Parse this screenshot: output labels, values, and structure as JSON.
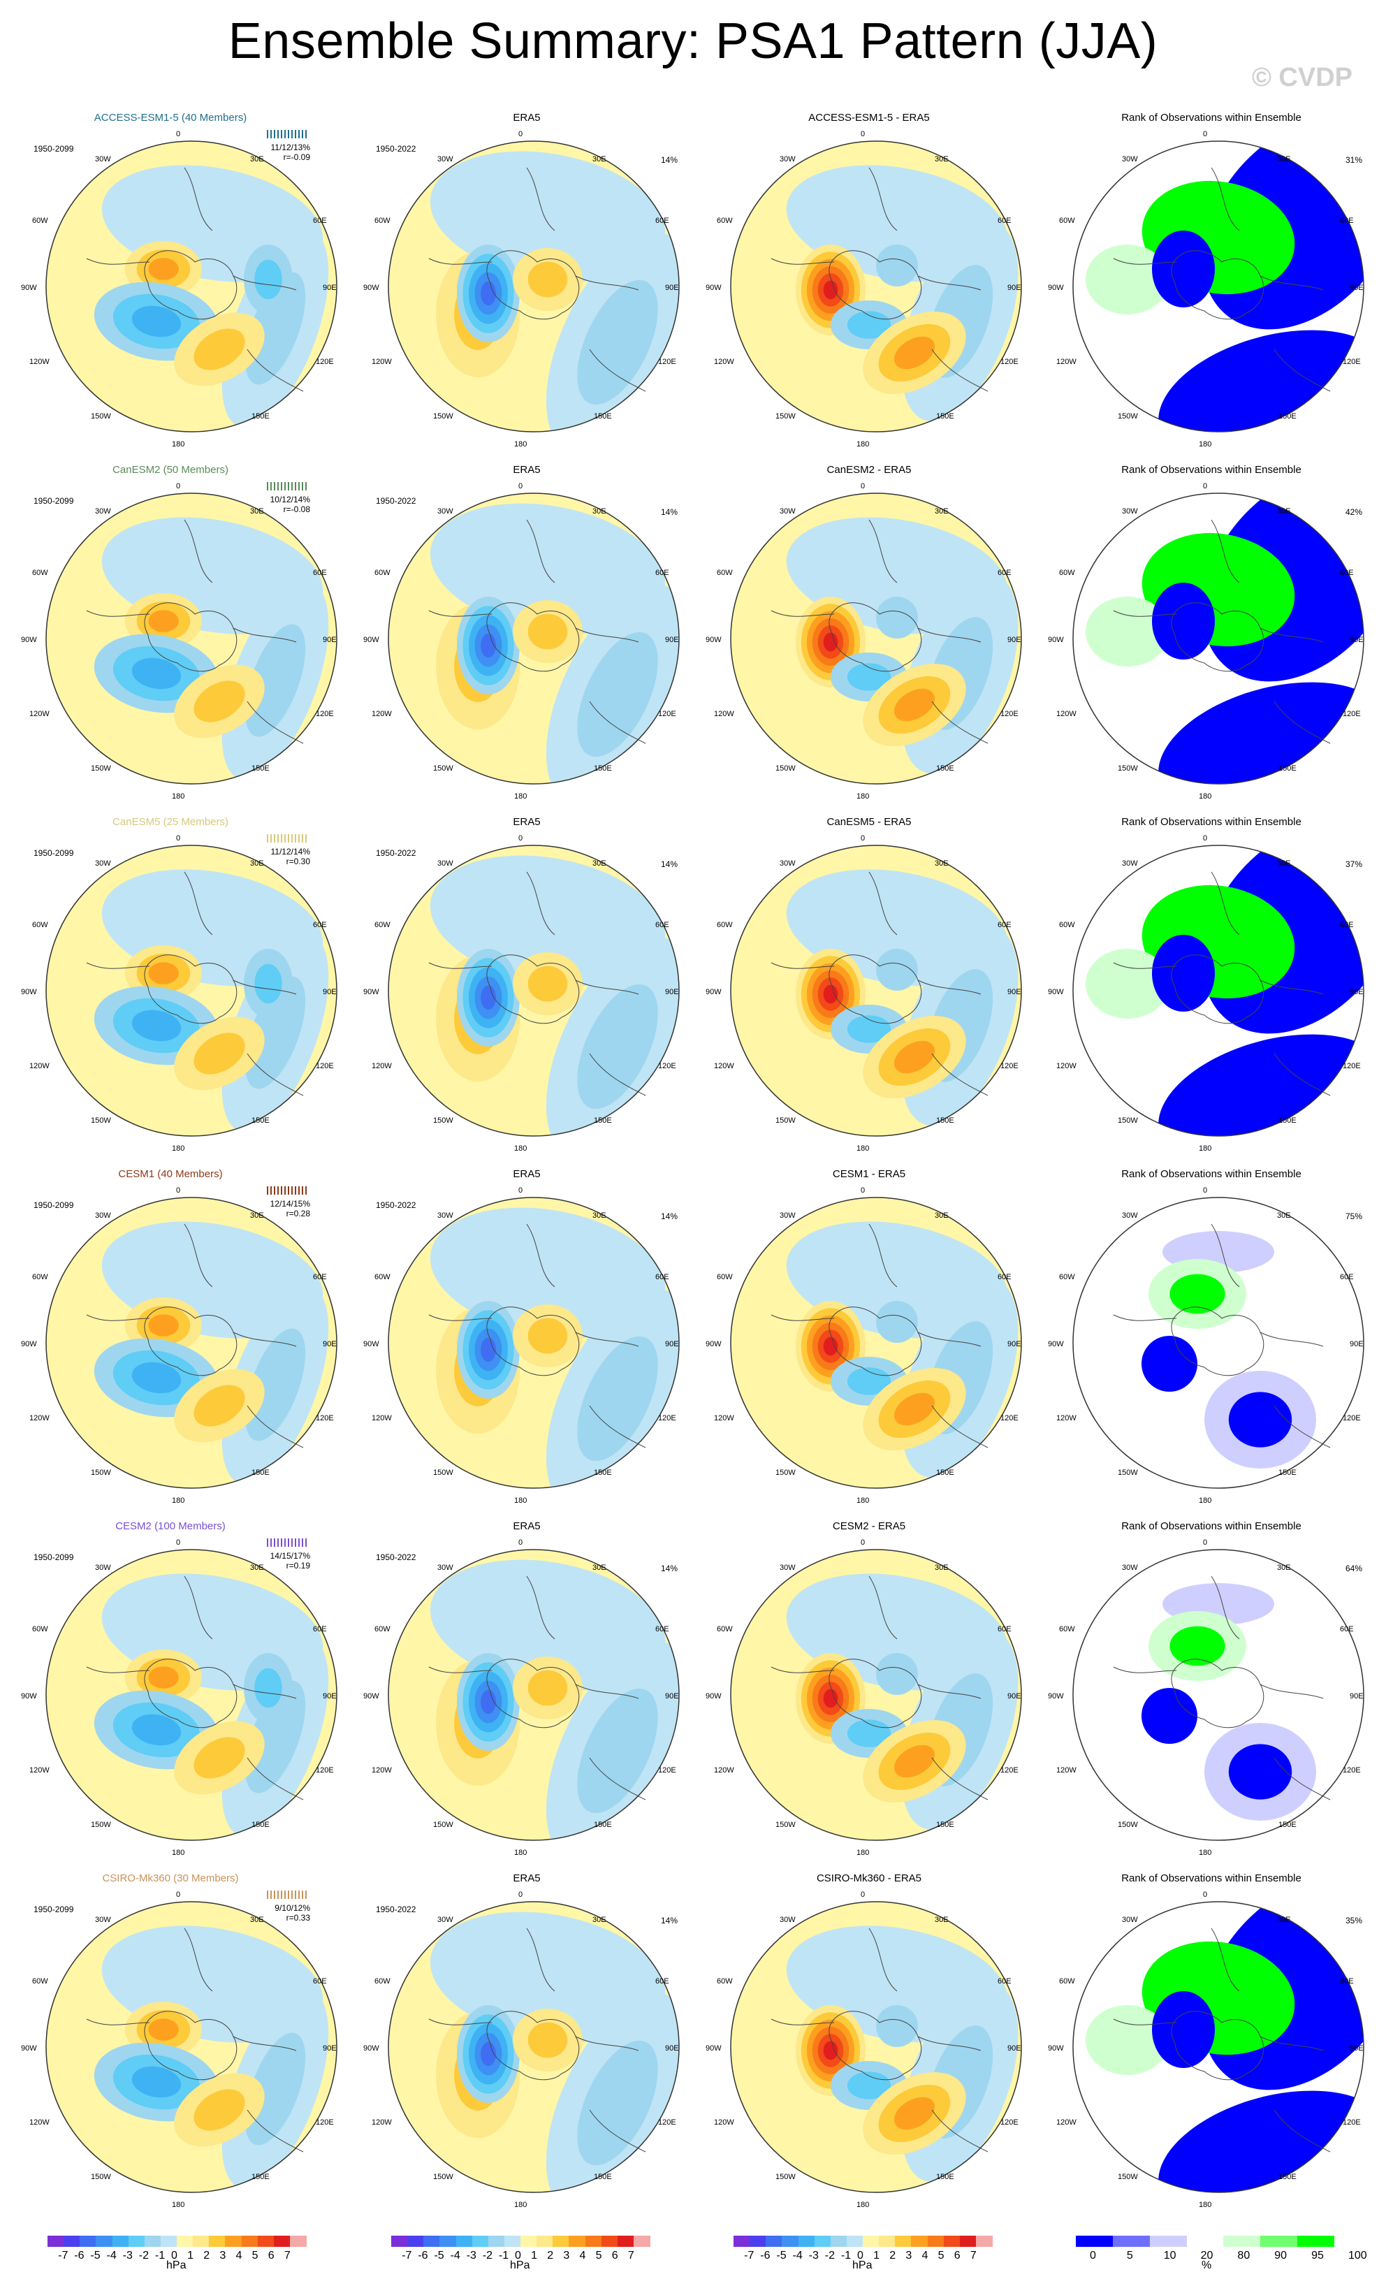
{
  "title": "Ensemble Summary: PSA1 Pattern (JJA)",
  "copyright": "© CVDP",
  "lon_labels": {
    "top": "0",
    "bottom": "180",
    "left": [
      "30W",
      "60W",
      "90W",
      "120W",
      "150W"
    ],
    "right": [
      "30E",
      "60E",
      "90E",
      "120E",
      "150E"
    ]
  },
  "common": {
    "obs_title": "ERA5",
    "obs_period": "1950-2022",
    "obs_pct": "14%",
    "model_period": "1950-2099",
    "rank_title": "Rank of Observations within Ensemble"
  },
  "rows": [
    {
      "model_title": "ACCESS-ESM1-5 (40 Members)",
      "model_color": "#1f6f8b",
      "stat1": "11/12/13%",
      "stat2": "r=-0.09",
      "diff_title": "ACCESS-ESM1-5 - ERA5",
      "rank_pct": "31%"
    },
    {
      "model_title": "CanESM2 (50 Members)",
      "model_color": "#5a8a5a",
      "stat1": "10/12/14%",
      "stat2": "r=-0.08",
      "diff_title": "CanESM2 - ERA5",
      "rank_pct": "42%"
    },
    {
      "model_title": "CanESM5 (25 Members)",
      "model_color": "#d8c87a",
      "stat1": "11/12/14%",
      "stat2": "r=0.30",
      "diff_title": "CanESM5 - ERA5",
      "rank_pct": "37%"
    },
    {
      "model_title": "CESM1 (40 Members)",
      "model_color": "#8b3a1a",
      "stat1": "12/14/15%",
      "stat2": "r=0.28",
      "diff_title": "CESM1 - ERA5",
      "rank_pct": "75%"
    },
    {
      "model_title": "CESM2 (100 Members)",
      "model_color": "#7a4fd0",
      "stat1": "14/15/17%",
      "stat2": "r=0.19",
      "diff_title": "CESM2 - ERA5",
      "rank_pct": "64%"
    },
    {
      "model_title": "CSIRO-Mk360 (30 Members)",
      "model_color": "#c9925a",
      "stat1": "9/10/12%",
      "stat2": "r=0.33",
      "diff_title": "CSIRO-Mk360 - ERA5",
      "rank_pct": "35%"
    }
  ],
  "colorbars": {
    "hpa_ticks": [
      "-7",
      "-6",
      "-5",
      "-4",
      "-3",
      "-2",
      "-1",
      "0",
      "1",
      "2",
      "3",
      "4",
      "5",
      "6",
      "7"
    ],
    "hpa_unit": "hPa",
    "hpa_colors": [
      "#7b2fd8",
      "#4b3ff0",
      "#3f6ef2",
      "#3e90f2",
      "#3fb2f4",
      "#5fcdf5",
      "#9ed6ef",
      "#bfe4f5",
      "#fff6a8",
      "#fde88a",
      "#fdca3a",
      "#fda020",
      "#f87a18",
      "#f24a18",
      "#e01e1e",
      "#f4a8a8"
    ],
    "rank_ticks": [
      "0",
      "5",
      "10",
      "20",
      "80",
      "90",
      "95",
      "100"
    ],
    "rank_unit": "%",
    "rank_colors": [
      "#0000ff",
      "#6f6fff",
      "#cfcfff",
      "#ffffff",
      "#cfffcf",
      "#6fff6f",
      "#00ff00"
    ]
  }
}
